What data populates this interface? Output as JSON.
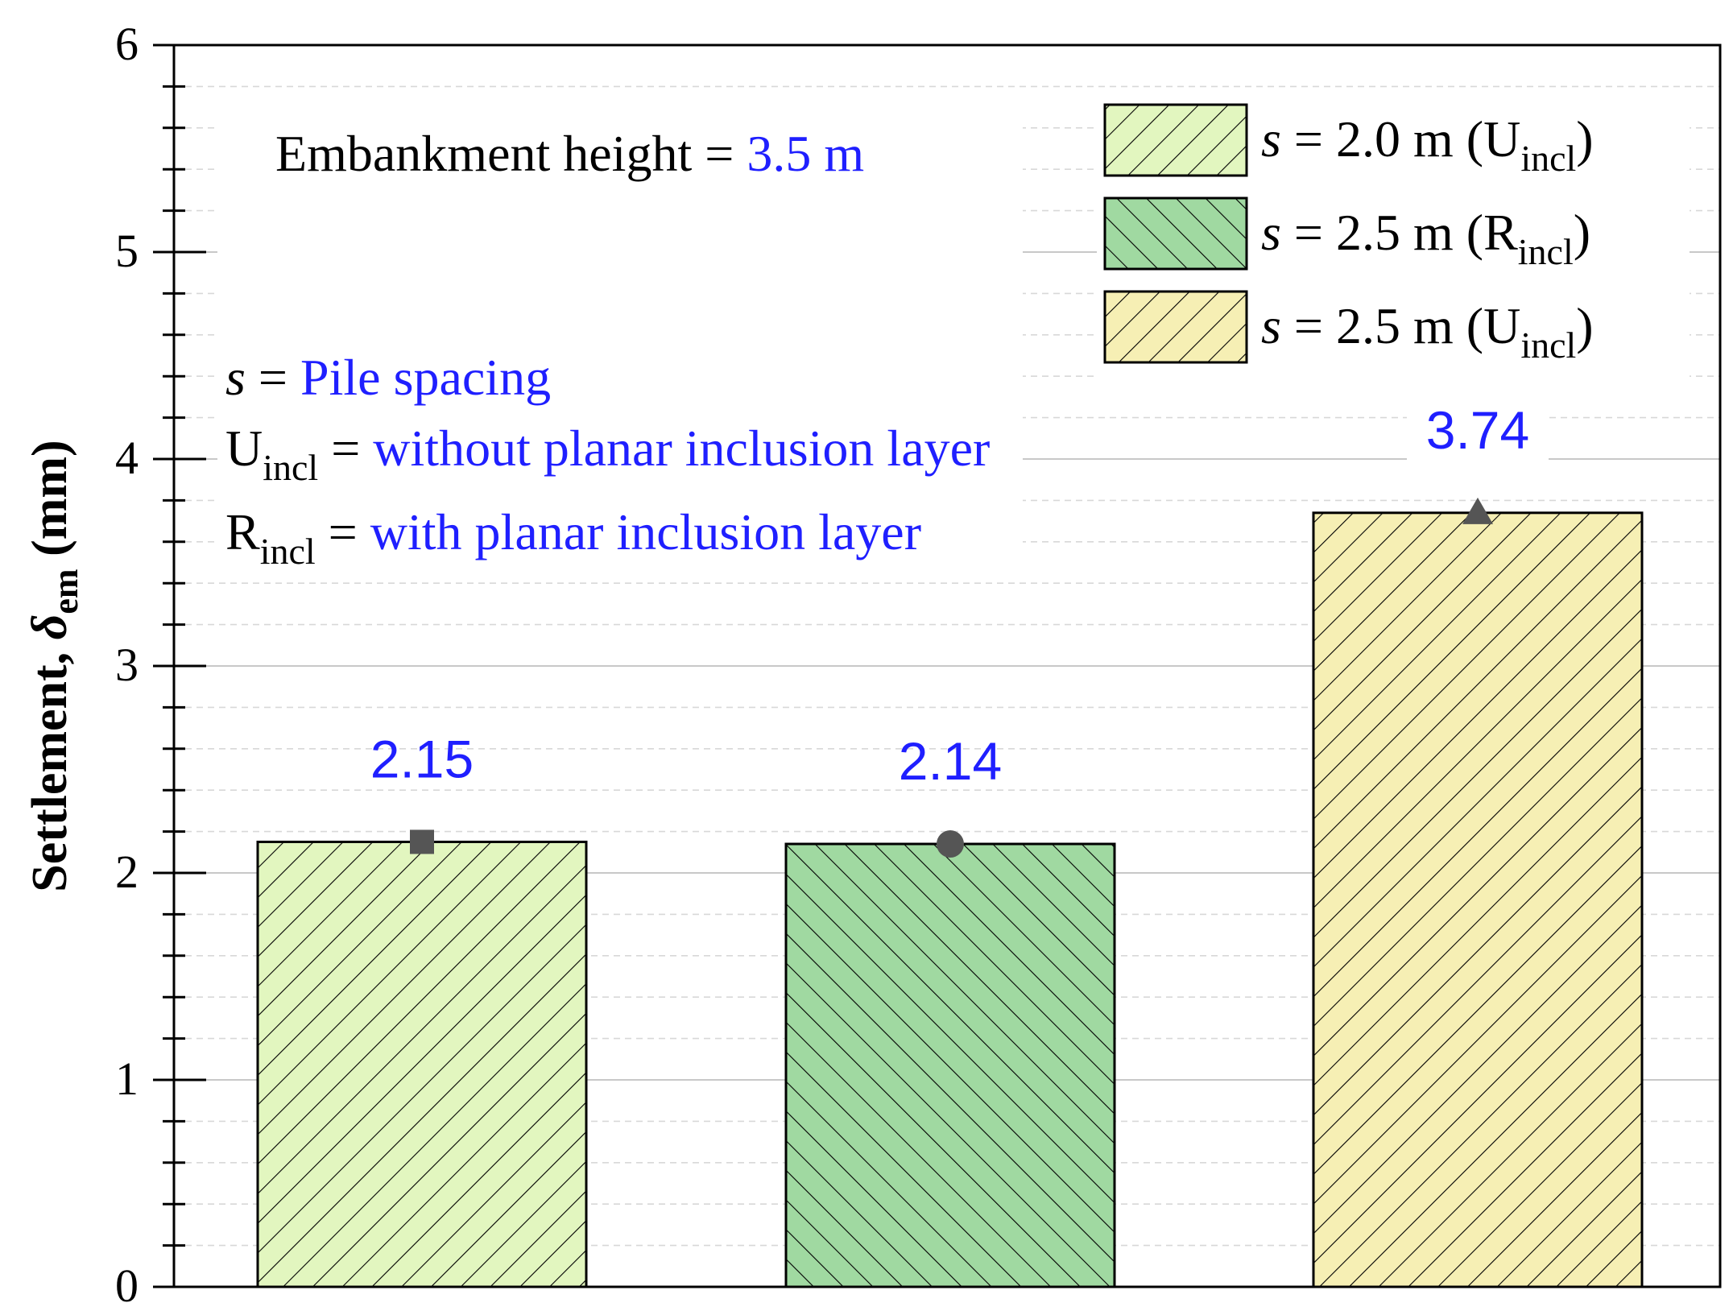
{
  "chart_data": {
    "type": "bar",
    "ylabel_text": "Settlement, ",
    "ylabel_symbol": "δ",
    "ylabel_sub": "em",
    "ylabel_unit": " (mm)",
    "ylim": [
      0,
      6
    ],
    "yticks": [
      "0",
      "1",
      "2",
      "3",
      "4",
      "5",
      "6"
    ],
    "grid": true,
    "legend_position": "top-right",
    "bars": [
      {
        "value": 2.15,
        "label": "2.15",
        "marker": "square",
        "fill": "#e2f6bf",
        "hatch": "backslash",
        "legend_prefix": "s",
        "legend_mid": " = 2.0 m (U",
        "legend_sub": "incl",
        "legend_suffix": ")"
      },
      {
        "value": 2.14,
        "label": "2.14",
        "marker": "circle",
        "fill": "#a0d9a1",
        "hatch": "slash",
        "legend_prefix": "s",
        "legend_mid": " = 2.5 m (R",
        "legend_sub": "incl",
        "legend_suffix": ")"
      },
      {
        "value": 3.74,
        "label": "3.74",
        "marker": "triangle",
        "fill": "#f6efb4",
        "hatch": "backslash",
        "legend_prefix": "s",
        "legend_mid": " = 2.5 m (U",
        "legend_sub": "incl",
        "legend_suffix": ")"
      }
    ],
    "annotations": {
      "height_label": "Embankment height = ",
      "height_value": "3.5 m",
      "s_symbol": "s",
      "s_eq": " = ",
      "s_def": "Pile spacing",
      "u_symbol": "U",
      "u_sub": "incl",
      "u_eq": " = ",
      "u_def": "without planar inclusion layer",
      "r_symbol": "R",
      "r_sub": "incl",
      "r_eq": " = ",
      "r_def": "with planar inclusion layer"
    },
    "colors": {
      "value_label": "#1f1fff",
      "marker": "#555555",
      "bar_edge": "#000000",
      "major_grid": "#c8c8c8",
      "minor_grid": "#d8d8d8"
    }
  }
}
